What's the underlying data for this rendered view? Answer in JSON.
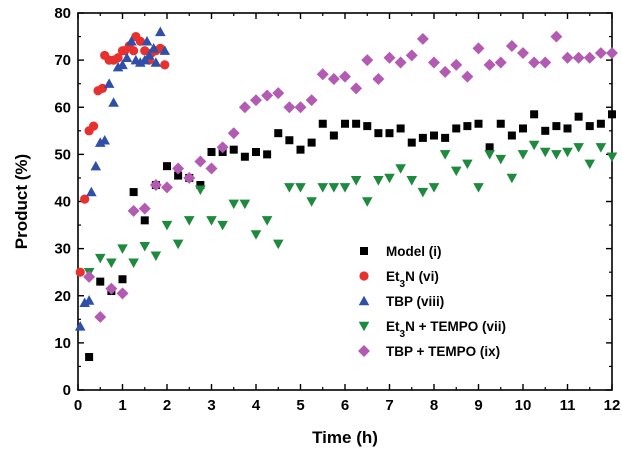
{
  "chart_data": {
    "type": "scatter",
    "xlabel": "Time (h)",
    "ylabel": "Product (%)",
    "xlim": [
      0,
      12
    ],
    "ylim": [
      0,
      80
    ],
    "x_ticks": [
      0,
      1,
      2,
      3,
      4,
      5,
      6,
      7,
      8,
      9,
      10,
      11,
      12
    ],
    "y_ticks": [
      0,
      10,
      20,
      30,
      40,
      50,
      60,
      70,
      80
    ],
    "grid": false,
    "legend_position": "bottom-right",
    "series": [
      {
        "name": "Model (i)",
        "legend_parts": [
          {
            "t": "Model (i)"
          }
        ],
        "marker": "square",
        "color": "#000000",
        "points": [
          [
            0.25,
            7
          ],
          [
            0.5,
            23
          ],
          [
            0.75,
            21
          ],
          [
            1,
            23.5
          ],
          [
            1.25,
            42
          ],
          [
            1.5,
            36
          ],
          [
            1.75,
            43.5
          ],
          [
            2,
            47.5
          ],
          [
            2.25,
            45.5
          ],
          [
            2.5,
            45
          ],
          [
            2.75,
            43.5
          ],
          [
            3,
            50.5
          ],
          [
            3.25,
            50.5
          ],
          [
            3.5,
            51
          ],
          [
            3.75,
            49.5
          ],
          [
            4,
            50.5
          ],
          [
            4.25,
            50
          ],
          [
            4.5,
            54.5
          ],
          [
            4.75,
            53
          ],
          [
            5,
            51
          ],
          [
            5.25,
            52.5
          ],
          [
            5.5,
            56.5
          ],
          [
            5.75,
            54
          ],
          [
            6,
            56.5
          ],
          [
            6.25,
            56.5
          ],
          [
            6.5,
            56
          ],
          [
            6.75,
            54.5
          ],
          [
            7,
            54.5
          ],
          [
            7.25,
            55.5
          ],
          [
            7.5,
            52.5
          ],
          [
            7.75,
            53.5
          ],
          [
            8,
            54
          ],
          [
            8.25,
            53.5
          ],
          [
            8.5,
            55.5
          ],
          [
            8.75,
            56
          ],
          [
            9,
            56.5
          ],
          [
            9.25,
            51.5
          ],
          [
            9.5,
            56.5
          ],
          [
            9.75,
            54
          ],
          [
            10,
            55.5
          ],
          [
            10.25,
            58.5
          ],
          [
            10.5,
            55
          ],
          [
            10.75,
            56
          ],
          [
            11,
            55.5
          ],
          [
            11.25,
            58
          ],
          [
            11.5,
            56
          ],
          [
            11.75,
            56.5
          ],
          [
            12,
            58.5
          ]
        ]
      },
      {
        "name": "Et3N (vi)",
        "legend_parts": [
          {
            "t": "Et"
          },
          {
            "t": "3",
            "sub": true
          },
          {
            "t": "N (vi)"
          }
        ],
        "marker": "circle",
        "color": "#e8312f",
        "points": [
          [
            0.05,
            25
          ],
          [
            0.15,
            40.5
          ],
          [
            0.25,
            55
          ],
          [
            0.35,
            56
          ],
          [
            0.45,
            63.5
          ],
          [
            0.55,
            64
          ],
          [
            0.6,
            71
          ],
          [
            0.7,
            70
          ],
          [
            0.8,
            70
          ],
          [
            0.9,
            70.5
          ],
          [
            1,
            72
          ],
          [
            1.05,
            72
          ],
          [
            1.15,
            73
          ],
          [
            1.25,
            72
          ],
          [
            1.3,
            75
          ],
          [
            1.4,
            74
          ],
          [
            1.5,
            72
          ],
          [
            1.6,
            70
          ],
          [
            1.65,
            71.5
          ],
          [
            1.75,
            72
          ],
          [
            1.85,
            72.5
          ],
          [
            1.95,
            69
          ]
        ]
      },
      {
        "name": "TBP (viii)",
        "legend_parts": [
          {
            "t": "TBP (viii)"
          }
        ],
        "marker": "triangle-up",
        "color": "#2f4fa8",
        "points": [
          [
            0.05,
            13.5
          ],
          [
            0.15,
            18.5
          ],
          [
            0.25,
            19
          ],
          [
            0.3,
            42
          ],
          [
            0.4,
            47.5
          ],
          [
            0.5,
            52.5
          ],
          [
            0.6,
            53
          ],
          [
            0.7,
            65
          ],
          [
            0.8,
            61
          ],
          [
            0.9,
            68.5
          ],
          [
            1,
            69
          ],
          [
            1.1,
            70.5
          ],
          [
            1.2,
            74
          ],
          [
            1.3,
            70
          ],
          [
            1.4,
            69.5
          ],
          [
            1.5,
            70
          ],
          [
            1.55,
            74
          ],
          [
            1.6,
            71
          ],
          [
            1.7,
            72.5
          ],
          [
            1.75,
            69.5
          ],
          [
            1.85,
            76
          ],
          [
            1.95,
            72
          ]
        ]
      },
      {
        "name": "Et3N + TEMPO (vii)",
        "legend_parts": [
          {
            "t": "Et"
          },
          {
            "t": "3",
            "sub": true
          },
          {
            "t": "N + TEMPO (vii)"
          }
        ],
        "marker": "triangle-down",
        "color": "#1d8a3e",
        "points": [
          [
            0.25,
            25
          ],
          [
            0.5,
            28
          ],
          [
            0.75,
            27
          ],
          [
            1,
            30
          ],
          [
            1.25,
            27
          ],
          [
            1.5,
            30.5
          ],
          [
            1.75,
            28.5
          ],
          [
            2,
            35
          ],
          [
            2.25,
            31
          ],
          [
            2.5,
            36
          ],
          [
            2.75,
            42.5
          ],
          [
            3,
            36
          ],
          [
            3.25,
            35
          ],
          [
            3.5,
            39.5
          ],
          [
            3.75,
            39.5
          ],
          [
            4,
            33
          ],
          [
            4.25,
            36
          ],
          [
            4.5,
            31
          ],
          [
            4.75,
            43
          ],
          [
            5,
            43
          ],
          [
            5.25,
            40
          ],
          [
            5.5,
            43
          ],
          [
            5.75,
            43
          ],
          [
            6,
            43
          ],
          [
            6.25,
            44.5
          ],
          [
            6.5,
            40
          ],
          [
            6.75,
            44.5
          ],
          [
            7,
            45
          ],
          [
            7.25,
            47
          ],
          [
            7.5,
            44.5
          ],
          [
            7.75,
            42
          ],
          [
            8,
            43
          ],
          [
            8.25,
            50
          ],
          [
            8.5,
            46.5
          ],
          [
            8.75,
            48
          ],
          [
            9,
            43
          ],
          [
            9.25,
            50
          ],
          [
            9.5,
            49
          ],
          [
            9.75,
            45
          ],
          [
            10,
            50
          ],
          [
            10.25,
            52
          ],
          [
            10.5,
            50.5
          ],
          [
            10.75,
            50
          ],
          [
            11,
            50.5
          ],
          [
            11.25,
            51.5
          ],
          [
            11.5,
            48
          ],
          [
            11.75,
            51.5
          ],
          [
            12,
            49.5
          ]
        ]
      },
      {
        "name": "TBP + TEMPO (ix)",
        "legend_parts": [
          {
            "t": "TBP + TEMPO (ix)"
          }
        ],
        "marker": "diamond",
        "color": "#b35bb3",
        "points": [
          [
            0.25,
            24
          ],
          [
            0.5,
            15.5
          ],
          [
            0.75,
            21.5
          ],
          [
            1,
            20.5
          ],
          [
            1.25,
            38
          ],
          [
            1.5,
            38.5
          ],
          [
            1.75,
            43.5
          ],
          [
            2,
            43
          ],
          [
            2.25,
            47
          ],
          [
            2.5,
            45
          ],
          [
            2.75,
            48.5
          ],
          [
            3,
            47
          ],
          [
            3.25,
            51.5
          ],
          [
            3.5,
            54.5
          ],
          [
            3.75,
            60
          ],
          [
            4,
            61.5
          ],
          [
            4.25,
            62.5
          ],
          [
            4.5,
            63
          ],
          [
            4.75,
            60
          ],
          [
            5,
            60
          ],
          [
            5.25,
            61.5
          ],
          [
            5.5,
            67
          ],
          [
            5.75,
            66
          ],
          [
            6,
            66.5
          ],
          [
            6.25,
            64
          ],
          [
            6.5,
            70
          ],
          [
            6.75,
            66
          ],
          [
            7,
            70.5
          ],
          [
            7.25,
            69.5
          ],
          [
            7.5,
            71
          ],
          [
            7.75,
            74.5
          ],
          [
            8,
            69.5
          ],
          [
            8.25,
            67.5
          ],
          [
            8.5,
            69
          ],
          [
            8.75,
            66.5
          ],
          [
            9,
            72.5
          ],
          [
            9.25,
            69
          ],
          [
            9.5,
            69.5
          ],
          [
            9.75,
            73
          ],
          [
            10,
            71.5
          ],
          [
            10.25,
            69.5
          ],
          [
            10.5,
            69.5
          ],
          [
            10.75,
            75
          ],
          [
            11,
            70.5
          ],
          [
            11.25,
            70.5
          ],
          [
            11.5,
            70.5
          ],
          [
            11.75,
            71.5
          ],
          [
            12,
            71.5
          ]
        ]
      }
    ]
  }
}
